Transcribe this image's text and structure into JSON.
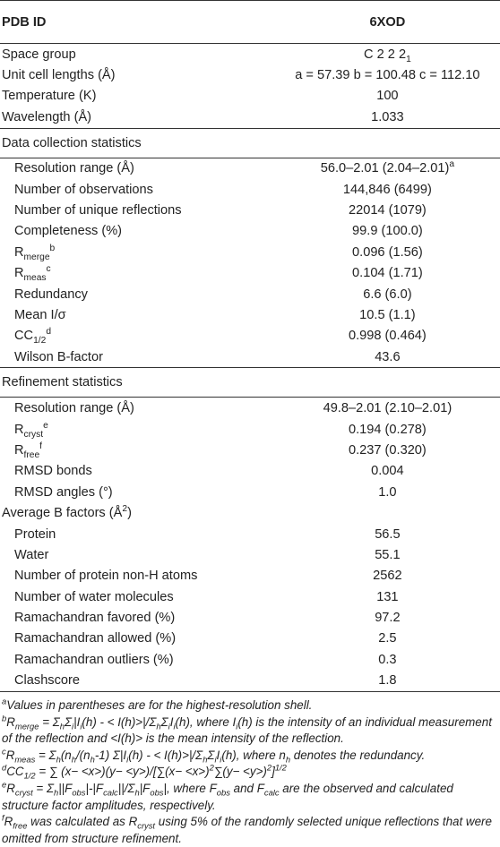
{
  "header": {
    "col1": "PDB ID",
    "col2": "6XOD"
  },
  "sections": [
    {
      "rows": [
        {
          "label": [
            "Space group"
          ],
          "value": [
            "C 2 2 2",
            {
              "sub": "1"
            }
          ],
          "indent": false
        },
        {
          "label": [
            "Unit cell lengths (Å)"
          ],
          "value": [
            "a = 57.39 b = 100.48 c = 112.10"
          ],
          "indent": false
        },
        {
          "label": [
            "Temperature (K)"
          ],
          "value": [
            "100"
          ],
          "indent": false
        },
        {
          "label": [
            "Wavelength (Å)"
          ],
          "value": [
            "1.033"
          ],
          "indent": false
        }
      ]
    },
    {
      "title": "Data collection statistics",
      "rows": [
        {
          "label": [
            "Resolution range (Å)"
          ],
          "value": [
            "56.0–2.01 (2.04–2.01)",
            {
              "sup": "a"
            }
          ],
          "indent": true
        },
        {
          "label": [
            "Number of observations"
          ],
          "value": [
            "144,846 (6499)"
          ],
          "indent": true
        },
        {
          "label": [
            "Number of unique reflections"
          ],
          "value": [
            "22014 (1079)"
          ],
          "indent": true
        },
        {
          "label": [
            "Completeness (%)"
          ],
          "value": [
            "99.9 (100.0)"
          ],
          "indent": true
        },
        {
          "label": [
            "R",
            {
              "sub": "merge"
            },
            {
              "sup": "b"
            }
          ],
          "value": [
            "0.096 (1.56)"
          ],
          "indent": true
        },
        {
          "label": [
            "R",
            {
              "sub": "meas"
            },
            {
              "sup": "c"
            }
          ],
          "value": [
            "0.104 (1.71)"
          ],
          "indent": true
        },
        {
          "label": [
            "Redundancy"
          ],
          "value": [
            "6.6 (6.0)"
          ],
          "indent": true
        },
        {
          "label": [
            "Mean I/σ"
          ],
          "value": [
            "10.5 (1.1)"
          ],
          "indent": true
        },
        {
          "label": [
            "CC",
            {
              "sub": "1/2"
            },
            {
              "sup": "d"
            }
          ],
          "value": [
            "0.998 (0.464)"
          ],
          "indent": true
        },
        {
          "label": [
            "Wilson B-factor"
          ],
          "value": [
            "43.6"
          ],
          "indent": true
        }
      ]
    },
    {
      "title": "Refinement statistics",
      "rows": [
        {
          "label": [
            "Resolution range (Å)"
          ],
          "value": [
            "49.8–2.01 (2.10–2.01)"
          ],
          "indent": true
        },
        {
          "label": [
            "R",
            {
              "sub": "cryst"
            },
            {
              "sup": "e"
            }
          ],
          "value": [
            "0.194 (0.278)"
          ],
          "indent": true
        },
        {
          "label": [
            "R",
            {
              "sub": "free"
            },
            {
              "sup": "f"
            }
          ],
          "value": [
            "0.237 (0.320)"
          ],
          "indent": true
        },
        {
          "label": [
            "RMSD bonds"
          ],
          "value": [
            "0.004"
          ],
          "indent": true
        },
        {
          "label": [
            "RMSD angles (°)"
          ],
          "value": [
            "1.0"
          ],
          "indent": true
        },
        {
          "label": [
            "Average B factors (Å",
            {
              "sup": "2"
            },
            ")"
          ],
          "value": [],
          "indent": false
        },
        {
          "label": [
            "Protein"
          ],
          "value": [
            "56.5"
          ],
          "indent": true
        },
        {
          "label": [
            "Water"
          ],
          "value": [
            "55.1"
          ],
          "indent": true
        },
        {
          "label": [
            "Number of protein non-H atoms"
          ],
          "value": [
            "2562"
          ],
          "indent": true
        },
        {
          "label": [
            "Number of water molecules"
          ],
          "value": [
            "131"
          ],
          "indent": true
        },
        {
          "label": [
            "Ramachandran favored (%)"
          ],
          "value": [
            "97.2"
          ],
          "indent": true
        },
        {
          "label": [
            "Ramachandran allowed (%)"
          ],
          "value": [
            "2.5"
          ],
          "indent": true
        },
        {
          "label": [
            "Ramachandran outliers (%)"
          ],
          "value": [
            "0.3"
          ],
          "indent": true
        },
        {
          "label": [
            "Clashscore"
          ],
          "value": [
            "1.8"
          ],
          "indent": true
        }
      ]
    }
  ],
  "footnotes": [
    [
      {
        "sup": "a"
      },
      "Values in parentheses are for the highest-resolution shell."
    ],
    [
      {
        "sup": "b"
      },
      "R",
      {
        "sub": "merge"
      },
      " = Σ",
      {
        "sub": "h"
      },
      "Σ",
      {
        "sub": "i"
      },
      "|I",
      {
        "sub": "i"
      },
      "(h) - < I(h)>|/Σ",
      {
        "sub": "h"
      },
      "Σ",
      {
        "sub": "i"
      },
      "I",
      {
        "sub": "i"
      },
      "(h), where I",
      {
        "sub": "i"
      },
      "(h) is the intensity of an individual measurement of the reflection and <I(h)> is the mean intensity of the reflection."
    ],
    [
      {
        "sup": "c"
      },
      "R",
      {
        "sub": "meas"
      },
      " = Σ",
      {
        "sub": "h"
      },
      "(n",
      {
        "sub": "h"
      },
      "/(n",
      {
        "sub": "h"
      },
      "-1) Σ|I",
      {
        "sub": "i"
      },
      "(h) - < I(h)>|/Σ",
      {
        "sub": "h"
      },
      "Σ",
      {
        "sub": "i"
      },
      "I",
      {
        "sub": "i"
      },
      "(h), where n",
      {
        "sub": "h"
      },
      " denotes the redundancy."
    ],
    [
      {
        "sup": "d"
      },
      "CC",
      {
        "sub": "1/2"
      },
      " = ∑ (x− <x>)(y− <y>)/[∑(x− <x>)",
      {
        "sup": "2"
      },
      "∑(y− <y>)",
      {
        "sup": "2"
      },
      "]",
      {
        "sup": "1/2"
      }
    ],
    [
      {
        "sup": "e"
      },
      "R",
      {
        "sub": "cryst"
      },
      " = Σ",
      {
        "sub": "h"
      },
      "||F",
      {
        "sub": "obs"
      },
      "|-|F",
      {
        "sub": "calc"
      },
      "||/Σ",
      {
        "sub": "h"
      },
      "|F",
      {
        "sub": "obs"
      },
      "|, where F",
      {
        "sub": "obs"
      },
      " and F",
      {
        "sub": "calc"
      },
      " are the observed and calculated structure factor amplitudes, respectively."
    ],
    [
      {
        "sup": "f"
      },
      "R",
      {
        "sub": "free"
      },
      " was calculated as R",
      {
        "sub": "cryst"
      },
      " using 5% of the randomly selected unique reflections that were omitted from structure refinement."
    ]
  ]
}
